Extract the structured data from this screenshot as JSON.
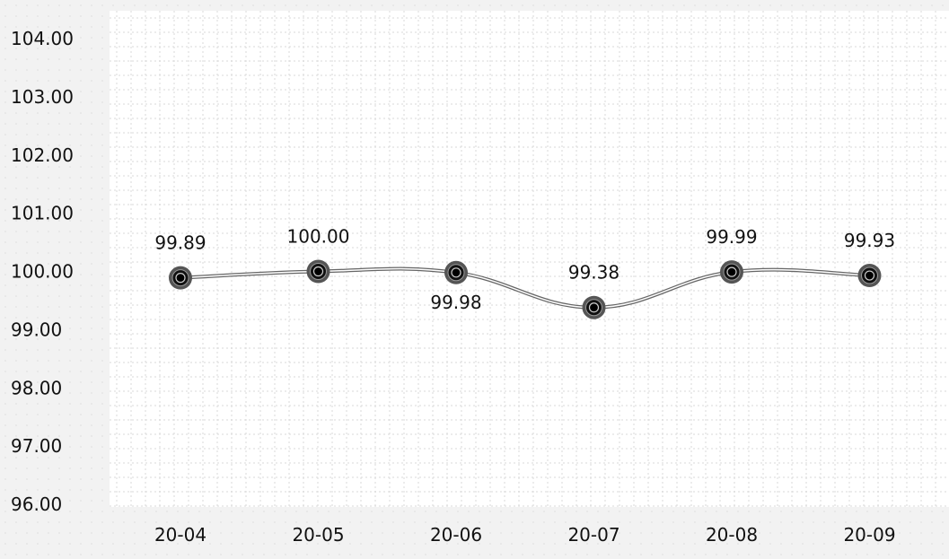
{
  "chart_data": {
    "type": "line",
    "categories": [
      "20-04",
      "20-05",
      "20-06",
      "20-07",
      "20-08",
      "20-09"
    ],
    "series": [
      {
        "values": [
          99.89,
          100.0,
          99.98,
          99.38,
          99.99,
          99.93
        ],
        "labels": [
          "99.89",
          "100.00",
          "99.98",
          "99.38",
          "99.99",
          "99.93"
        ]
      }
    ],
    "yticks": [
      "96.00",
      "97.00",
      "98.00",
      "99.00",
      "100.00",
      "101.00",
      "102.00",
      "103.00",
      "104.00"
    ],
    "ylim": [
      96,
      104
    ],
    "grid": true,
    "smooth": true,
    "colors": {
      "background": "#f2f2f2",
      "plot": "#ffffff",
      "grid": "#d8d8d8",
      "line": "#888888",
      "marker_outer": "#555555",
      "marker_inner": "#000000"
    }
  }
}
